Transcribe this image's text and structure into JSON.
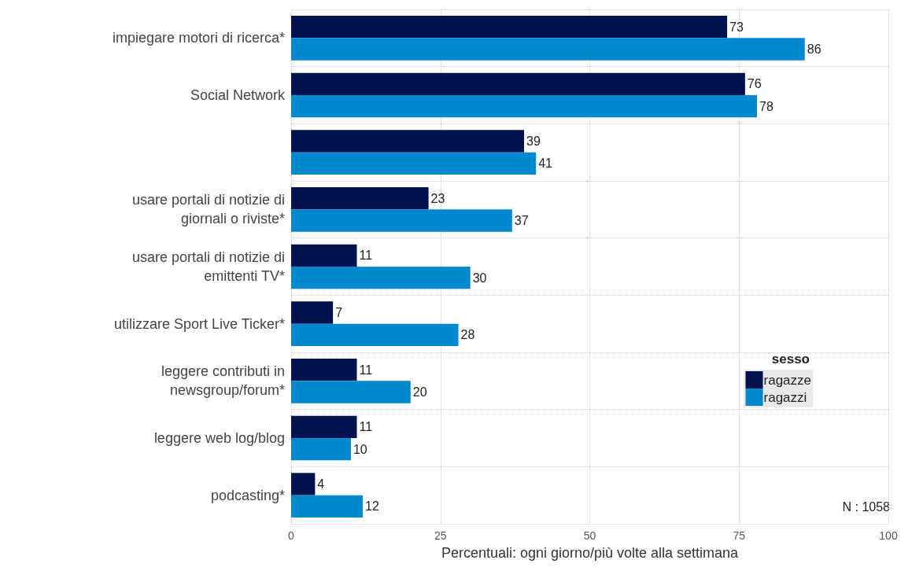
{
  "chart_data": {
    "type": "bar",
    "orientation": "horizontal",
    "categories": [
      "impiegare motori di ricerca*",
      "Social Network",
      null,
      "usare portali di notizie di\ngiornali o riviste*",
      "usare portali di notizie di\nemittenti TV*",
      "utilizzare Sport Live Ticker*",
      "leggere contributi in\nnewsgroup/forum*",
      "leggere web log/blog",
      "podcasting*"
    ],
    "series": [
      {
        "name": "ragazze",
        "color": "#01134d",
        "values": [
          73,
          76,
          39,
          23,
          11,
          7,
          11,
          11,
          4
        ]
      },
      {
        "name": "ragazzi",
        "color": "#0288cf",
        "values": [
          86,
          78,
          41,
          37,
          30,
          28,
          20,
          10,
          12
        ]
      }
    ],
    "xlim": [
      0,
      100
    ],
    "xticks": [
      0,
      25,
      50,
      75,
      100
    ],
    "xlabel": "Percentuali: ogni giorno/più volte alla settimana",
    "legend_title": "sesso",
    "legend": "right",
    "annotations": [
      "N : 1058"
    ],
    "grid": true,
    "data_labels": true
  }
}
